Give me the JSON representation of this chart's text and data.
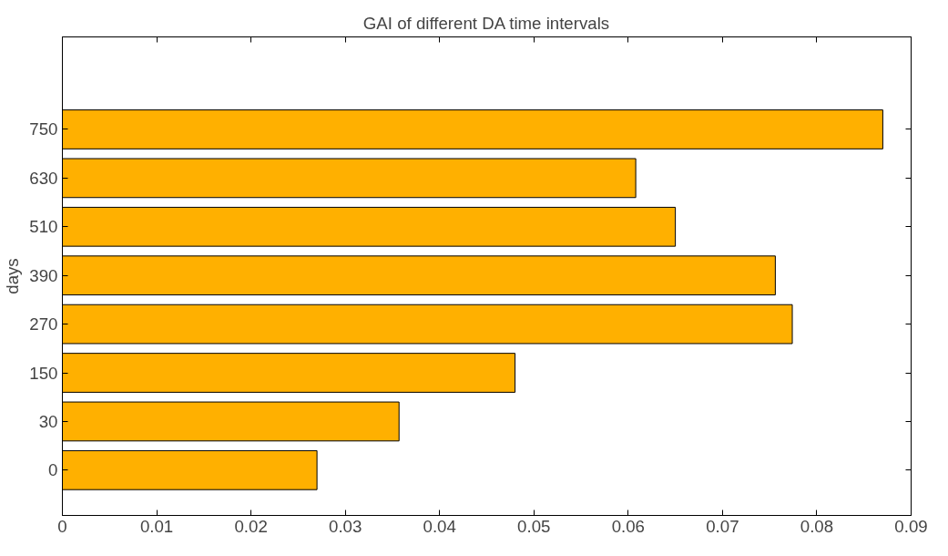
{
  "chart_data": {
    "type": "bar",
    "orientation": "horizontal",
    "title": "GAI of different DA time intervals",
    "ylabel": "days",
    "categories": [
      "750",
      "630",
      "510",
      "390",
      "270",
      "150",
      "30",
      "0"
    ],
    "values": [
      0.087,
      0.0608,
      0.065,
      0.0756,
      0.0774,
      0.048,
      0.0357,
      0.027
    ],
    "color": "#ffb000",
    "xlim": [
      0,
      0.09
    ],
    "xticks": [
      0,
      0.01,
      0.02,
      0.03,
      0.04,
      0.05,
      0.06,
      0.07,
      0.08,
      0.09
    ],
    "grid": false
  }
}
